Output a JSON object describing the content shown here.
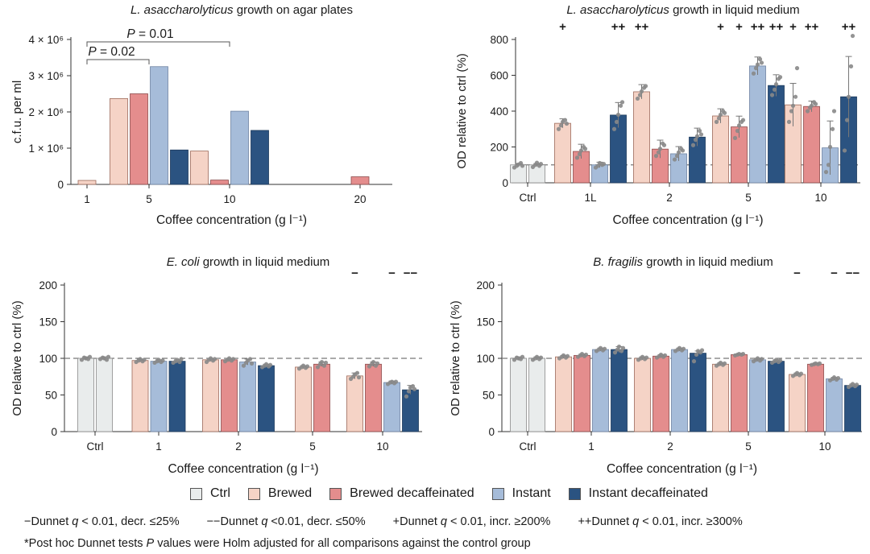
{
  "colors": {
    "ctrl": "#e9ecec",
    "brewed": "#f5d3c6",
    "brewed_decaf": "#e48d8d",
    "instant": "#a6bcd9",
    "instant_decaf": "#2b5381",
    "refline": "#777777",
    "point": "#888888"
  },
  "legend": {
    "items": [
      {
        "key": "ctrl",
        "label": "Ctrl"
      },
      {
        "key": "brewed",
        "label": "Brewed"
      },
      {
        "key": "brewed_decaf",
        "label": "Brewed decaffeinated"
      },
      {
        "key": "instant",
        "label": "Instant"
      },
      {
        "key": "instant_decaf",
        "label": "Instant decaffeinated"
      }
    ]
  },
  "footnotes": {
    "line1": [
      {
        "sym": "−",
        "text": "Dunnet ",
        "q": "q",
        "rest": " < 0.01, decr. ≤25%"
      },
      {
        "sym": "−−",
        "text": "Dunnet ",
        "q": "q",
        "rest": " <0.01, decr. ≤50%"
      },
      {
        "sym": "+",
        "text": "Dunnet ",
        "q": "q",
        "rest": " < 0.01, incr. ≥200%"
      },
      {
        "sym": "++",
        "text": "Dunnet ",
        "q": "q",
        "rest": " < 0.01, incr. ≥300%"
      }
    ],
    "line2_pre": "*Post hoc Dunnet tests ",
    "line2_p": "P",
    "line2_post": " values were Holm adjusted for all comparisons against the control group"
  },
  "chart_data": [
    {
      "type": "bar",
      "title_italic": "L. asaccharolyticus",
      "title_rest": " growth on agar plates",
      "xlabel": "Coffee concentration (g l⁻¹)",
      "ylabel": "c.f.u. per ml",
      "ylim": [
        0,
        4000000
      ],
      "yticks": [
        {
          "v": 0,
          "label": "0"
        },
        {
          "v": 1000000,
          "label": "1 × 10⁶"
        },
        {
          "v": 2000000,
          "label": "2 × 10⁶"
        },
        {
          "v": 3000000,
          "label": "3 × 10⁶"
        },
        {
          "v": 4000000,
          "label": "4 × 10⁶"
        }
      ],
      "groups": [
        {
          "label": "1",
          "bars": [
            {
              "s": "brewed",
              "v": 110000
            }
          ]
        },
        {
          "label": "5",
          "bars": [
            {
              "s": "brewed",
              "v": 2370000
            },
            {
              "s": "brewed_decaf",
              "v": 2500000
            },
            {
              "s": "instant",
              "v": 3250000
            },
            {
              "s": "instant_decaf",
              "v": 950000
            }
          ]
        },
        {
          "label": "10",
          "bars": [
            {
              "s": "brewed",
              "v": 920000
            },
            {
              "s": "brewed_decaf",
              "v": 120000
            },
            {
              "s": "instant",
              "v": 2020000
            },
            {
              "s": "instant_decaf",
              "v": 1490000
            }
          ]
        },
        {
          "label": "20",
          "bars": [
            {
              "s": "brewed_decaf",
              "v": 210000
            }
          ]
        }
      ],
      "brackets": [
        {
          "from_group": 0,
          "to_group": 1,
          "label": "P = 0.02",
          "level": 1
        },
        {
          "from_group": 0,
          "to_group": 2,
          "label": "P = 0.01",
          "level": 2
        }
      ]
    },
    {
      "type": "bar",
      "title_italic": "L. asaccharolyticus",
      "title_rest": " growth in liquid medium",
      "xlabel": "Coffee concentration (g l⁻¹)",
      "ylabel": "OD relative to ctrl (%)",
      "ylim": [
        0,
        800
      ],
      "yticks": [
        0,
        200,
        400,
        600,
        800
      ],
      "refline": 100,
      "groups": [
        {
          "label": "Ctrl",
          "bars": [
            {
              "s": "ctrl",
              "v": 100,
              "err": 8,
              "pts": [
                85,
                95,
                102,
                110,
                95
              ]
            },
            {
              "s": "ctrl",
              "v": 100,
              "err": 8,
              "pts": [
                88,
                100,
                112,
                95,
                105
              ]
            }
          ]
        },
        {
          "label": "1L",
          "bars": [
            {
              "s": "brewed",
              "v": 332,
              "err": 25,
              "pts": [
                300,
                320,
                340,
                350,
                330
              ],
              "mark": "+"
            },
            {
              "s": "brewed_decaf",
              "v": 175,
              "err": 40,
              "pts": [
                140,
                160,
                180,
                200,
                190
              ]
            },
            {
              "s": "instant",
              "v": 100,
              "err": 15,
              "pts": [
                85,
                95,
                110,
                100,
                105
              ]
            },
            {
              "s": "instant_decaf",
              "v": 378,
              "err": 70,
              "pts": [
                300,
                340,
                380,
                430,
                450
              ],
              "mark": "++"
            }
          ]
        },
        {
          "label": "2",
          "bars": [
            {
              "s": "brewed",
              "v": 508,
              "err": 40,
              "pts": [
                470,
                490,
                510,
                530,
                540
              ],
              "mark": "++"
            },
            {
              "s": "brewed_decaf",
              "v": 188,
              "err": 50,
              "pts": [
                150,
                170,
                190,
                220,
                210
              ]
            },
            {
              "s": "instant",
              "v": 162,
              "err": 40,
              "pts": [
                130,
                150,
                170,
                190,
                180
              ]
            },
            {
              "s": "instant_decaf",
              "v": 255,
              "err": 50,
              "pts": [
                210,
                240,
                260,
                290,
                270
              ]
            }
          ]
        },
        {
          "label": "5",
          "bars": [
            {
              "s": "brewed",
              "v": 373,
              "err": 40,
              "pts": [
                340,
                360,
                380,
                400,
                390
              ],
              "mark": "+"
            },
            {
              "s": "brewed_decaf",
              "v": 312,
              "err": 60,
              "pts": [
                250,
                290,
                320,
                340,
                350
              ],
              "mark": "+"
            },
            {
              "s": "instant",
              "v": 652,
              "err": 50,
              "pts": [
                610,
                640,
                660,
                690,
                670
              ],
              "mark": "++"
            },
            {
              "s": "instant_decaf",
              "v": 543,
              "err": 60,
              "pts": [
                490,
                520,
                550,
                580,
                590
              ],
              "mark": "++"
            }
          ]
        },
        {
          "label": "10",
          "bars": [
            {
              "s": "brewed",
              "v": 435,
              "err": 120,
              "pts": [
                340,
                400,
                430,
                480,
                640
              ],
              "mark": "+"
            },
            {
              "s": "brewed_decaf",
              "v": 426,
              "err": 30,
              "pts": [
                400,
                420,
                430,
                450,
                440
              ],
              "mark": "++"
            },
            {
              "s": "instant",
              "v": 195,
              "err": 150,
              "pts": [
                60,
                100,
                200,
                300,
                400
              ]
            },
            {
              "s": "instant_decaf",
              "v": 480,
              "err": 225,
              "pts": [
                180,
                350,
                480,
                650,
                820
              ],
              "mark": "++"
            }
          ]
        }
      ]
    },
    {
      "type": "bar",
      "title_italic": "E. coli",
      "title_rest": " growth in liquid medium",
      "xlabel": "Coffee concentration (g l⁻¹)",
      "ylabel": "OD relative to ctrl (%)",
      "ylim": [
        0,
        200
      ],
      "yticks": [
        0,
        50,
        100,
        150,
        200
      ],
      "refline": 100,
      "groups": [
        {
          "label": "Ctrl",
          "bars": [
            {
              "s": "ctrl",
              "v": 100,
              "err": 2,
              "pts": [
                98,
                101,
                100,
                99,
                102
              ]
            },
            {
              "s": "ctrl",
              "v": 100,
              "err": 2,
              "pts": [
                99,
                101,
                100,
                98,
                102
              ]
            }
          ]
        },
        {
          "label": "1",
          "bars": [
            {
              "s": "brewed",
              "v": 97,
              "err": 2,
              "pts": [
                95,
                97,
                99,
                96,
                98
              ]
            },
            {
              "s": "instant",
              "v": 96,
              "err": 2,
              "pts": [
                94,
                96,
                98,
                95,
                97
              ]
            },
            {
              "s": "instant_decaf",
              "v": 96,
              "err": 2,
              "pts": [
                94,
                96,
                98,
                95,
                99
              ]
            }
          ]
        },
        {
          "label": "2",
          "bars": [
            {
              "s": "brewed",
              "v": 98,
              "err": 2,
              "pts": [
                95,
                98,
                100,
                97,
                99
              ]
            },
            {
              "s": "brewed_decaf",
              "v": 98,
              "err": 2,
              "pts": [
                96,
                98,
                100,
                97,
                99
              ]
            },
            {
              "s": "instant",
              "v": 95,
              "err": 4,
              "pts": [
                90,
                94,
                97,
                99,
                93
              ]
            },
            {
              "s": "instant_decaf",
              "v": 90,
              "err": 2,
              "pts": [
                88,
                90,
                92,
                89,
                91
              ]
            }
          ]
        },
        {
          "label": "5",
          "bars": [
            {
              "s": "brewed",
              "v": 88,
              "err": 2,
              "pts": [
                86,
                88,
                90,
                87,
                89
              ]
            },
            {
              "s": "brewed_decaf",
              "v": 92,
              "err": 3,
              "pts": [
                88,
                92,
                95,
                90,
                94
              ]
            }
          ]
        },
        {
          "label": "10",
          "bars": [
            {
              "s": "brewed",
              "v": 76,
              "err": 4,
              "pts": [
                72,
                75,
                78,
                80,
                74
              ],
              "mark": "−"
            },
            {
              "s": "brewed_decaf",
              "v": 92,
              "err": 3,
              "pts": [
                89,
                92,
                95,
                90,
                93
              ]
            },
            {
              "s": "instant",
              "v": 67,
              "err": 2,
              "pts": [
                65,
                67,
                68,
                66,
                68
              ],
              "mark": "−"
            },
            {
              "s": "instant_decaf",
              "v": 57,
              "err": 6,
              "pts": [
                48,
                55,
                60,
                62,
                58
              ],
              "mark": "−−"
            }
          ]
        }
      ]
    },
    {
      "type": "bar",
      "title_italic": "B. fragilis",
      "title_rest": " growth in liquid medium",
      "xlabel": "Coffee concentration (g l⁻¹)",
      "ylabel": "OD relative to ctrl (%)",
      "ylim": [
        0,
        200
      ],
      "yticks": [
        0,
        50,
        100,
        150,
        200
      ],
      "refline": 100,
      "groups": [
        {
          "label": "Ctrl",
          "bars": [
            {
              "s": "ctrl",
              "v": 100,
              "err": 2,
              "pts": [
                98,
                101,
                100,
                99,
                102
              ]
            },
            {
              "s": "ctrl",
              "v": 100,
              "err": 2,
              "pts": [
                98,
                100,
                102,
                99,
                101
              ]
            }
          ]
        },
        {
          "label": "1",
          "bars": [
            {
              "s": "brewed",
              "v": 102,
              "err": 2,
              "pts": [
                100,
                102,
                104,
                101,
                103
              ]
            },
            {
              "s": "brewed_decaf",
              "v": 104,
              "err": 2,
              "pts": [
                102,
                104,
                106,
                103,
                105
              ]
            },
            {
              "s": "instant",
              "v": 112,
              "err": 2,
              "pts": [
                110,
                112,
                114,
                111,
                113
              ]
            },
            {
              "s": "instant_decaf",
              "v": 112,
              "err": 4,
              "pts": [
                108,
                112,
                116,
                110,
                114
              ]
            }
          ]
        },
        {
          "label": "2",
          "bars": [
            {
              "s": "brewed",
              "v": 100,
              "err": 2,
              "pts": [
                98,
                100,
                102,
                99,
                101
              ]
            },
            {
              "s": "brewed_decaf",
              "v": 103,
              "err": 2,
              "pts": [
                101,
                103,
                105,
                102,
                104
              ]
            },
            {
              "s": "instant",
              "v": 112,
              "err": 2,
              "pts": [
                110,
                112,
                114,
                111,
                113
              ]
            },
            {
              "s": "instant_decaf",
              "v": 107,
              "err": 3,
              "pts": [
                96,
                105,
                110,
                108,
                111
              ]
            }
          ]
        },
        {
          "label": "5",
          "bars": [
            {
              "s": "brewed",
              "v": 92,
              "err": 2,
              "pts": [
                90,
                92,
                94,
                91,
                93
              ]
            },
            {
              "s": "brewed_decaf",
              "v": 105,
              "err": 1,
              "pts": [
                104,
                105,
                106,
                105,
                106
              ]
            },
            {
              "s": "instant",
              "v": 98,
              "err": 2,
              "pts": [
                96,
                98,
                100,
                97,
                99
              ]
            },
            {
              "s": "instant_decaf",
              "v": 96,
              "err": 2,
              "pts": [
                94,
                96,
                98,
                95,
                97
              ]
            }
          ]
        },
        {
          "label": "10",
          "bars": [
            {
              "s": "brewed",
              "v": 78,
              "err": 2,
              "pts": [
                76,
                78,
                80,
                77,
                79
              ],
              "mark": "−"
            },
            {
              "s": "brewed_decaf",
              "v": 92,
              "err": 1,
              "pts": [
                91,
                92,
                93,
                92,
                93
              ]
            },
            {
              "s": "instant",
              "v": 72,
              "err": 2,
              "pts": [
                70,
                72,
                74,
                71,
                73
              ],
              "mark": "−"
            },
            {
              "s": "instant_decaf",
              "v": 63,
              "err": 2,
              "pts": [
                61,
                63,
                65,
                62,
                64
              ],
              "mark": "−−"
            }
          ]
        }
      ]
    }
  ]
}
